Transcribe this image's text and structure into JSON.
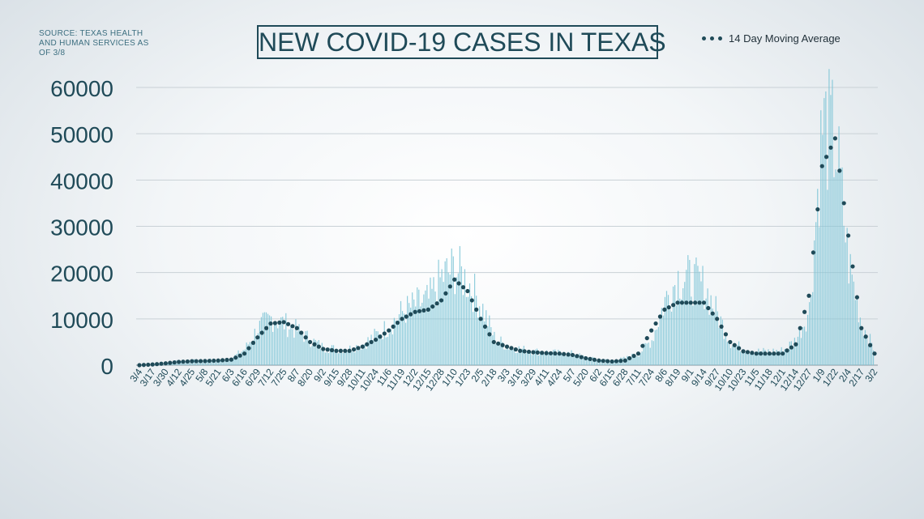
{
  "source_note": "SOURCE: TEXAS HEALTH AND HUMAN SERVICES AS OF 3/8",
  "chart_data": {
    "type": "bar",
    "title": "NEW COVID-19 CASES IN TEXAS",
    "ylim": [
      0,
      63000
    ],
    "yticks": [
      0,
      10000,
      20000,
      30000,
      40000,
      50000,
      60000
    ],
    "grid": true,
    "legend_position": "top-right",
    "bar_color": "#7cc4d6",
    "line_color": "#1f4a58",
    "x_tick_labels": [
      "3/4",
      "3/17",
      "3/30",
      "4/12",
      "4/25",
      "5/8",
      "5/21",
      "6/3",
      "6/16",
      "6/29",
      "7/12",
      "7/25",
      "8/7",
      "8/20",
      "9/2",
      "9/15",
      "9/28",
      "10/11",
      "10/24",
      "11/6",
      "11/19",
      "12/2",
      "12/15",
      "12/28",
      "1/10",
      "1/23",
      "2/5",
      "2/18",
      "3/3",
      "3/16",
      "3/29",
      "4/11",
      "4/24",
      "5/7",
      "5/20",
      "6/2",
      "6/15",
      "6/28",
      "7/11",
      "7/24",
      "8/6",
      "8/19",
      "9/1",
      "9/14",
      "9/27",
      "10/10",
      "10/23",
      "11/5",
      "11/18",
      "12/1",
      "12/14",
      "12/27",
      "1/9",
      "1/22",
      "2/4",
      "2/17",
      "3/2"
    ],
    "bar_series_values_per_tick": [
      0,
      200,
      500,
      900,
      1000,
      1100,
      1200,
      1500,
      3500,
      8000,
      10200,
      9000,
      7500,
      5500,
      3800,
      3500,
      3600,
      4500,
      6500,
      8500,
      11500,
      13000,
      14000,
      19000,
      21000,
      18000,
      13000,
      6000,
      4000,
      3500,
      3000,
      2800,
      2600,
      2500,
      1600,
      1200,
      1000,
      1500,
      2500,
      5500,
      14000,
      19000,
      18500,
      17000,
      11000,
      5000,
      3500,
      3000,
      3000,
      3200,
      5500,
      12000,
      52000,
      48000,
      22000,
      9000,
      3000
    ],
    "series": [
      {
        "name": "14 Day Moving Average",
        "values": [
          0,
          150,
          400,
          700,
          850,
          900,
          1000,
          1200,
          2500,
          6000,
          9000,
          9300,
          8000,
          5000,
          3500,
          3100,
          3100,
          4000,
          5500,
          7500,
          10000,
          11500,
          12000,
          14000,
          18500,
          16000,
          10000,
          5000,
          4000,
          3100,
          2800,
          2600,
          2500,
          2200,
          1500,
          1000,
          800,
          1000,
          2500,
          7500,
          12000,
          13500,
          13500,
          13500,
          10000,
          5000,
          3000,
          2500,
          2500,
          2500,
          4500,
          15000,
          43000,
          49000,
          28000,
          8000,
          2500
        ]
      }
    ]
  }
}
